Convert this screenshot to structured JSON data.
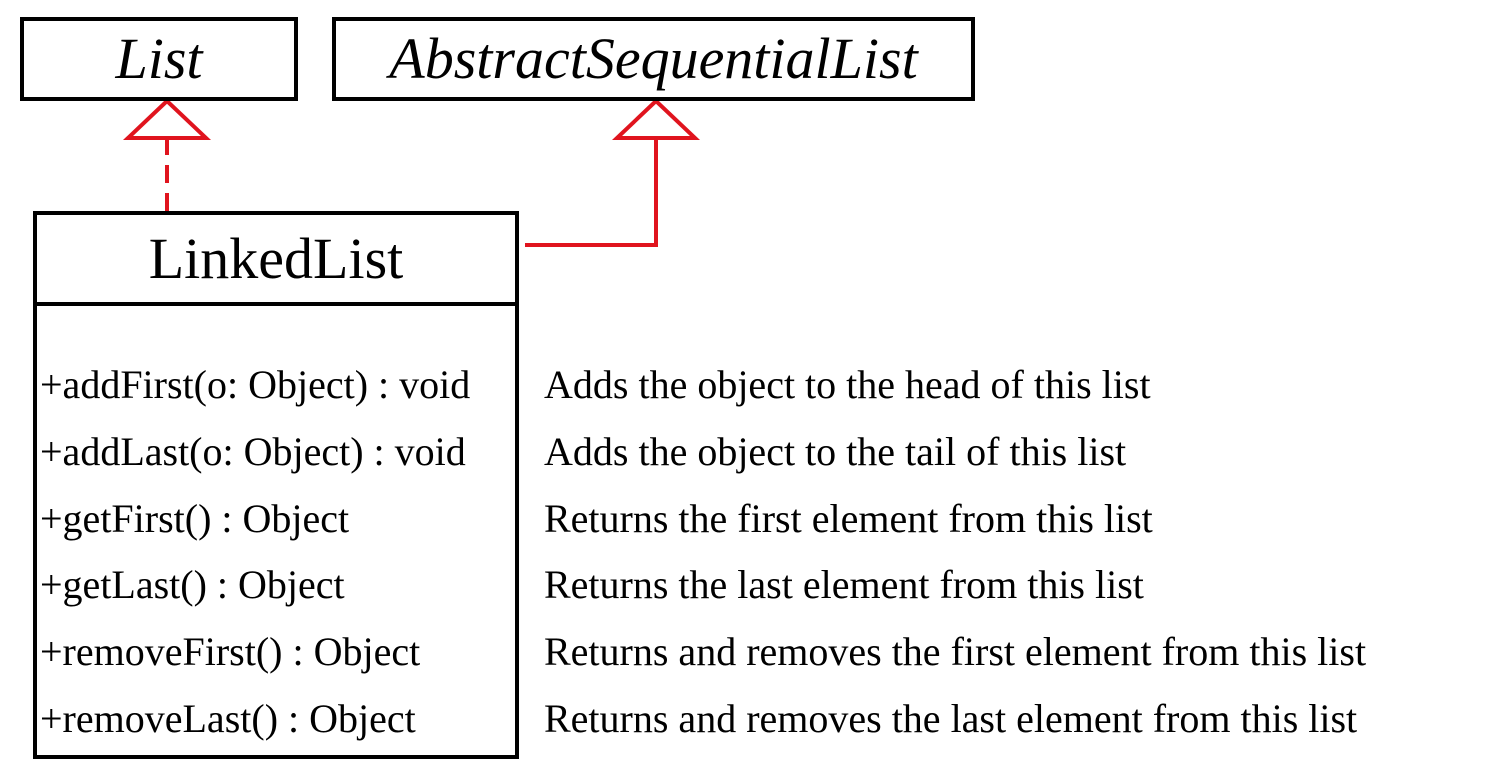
{
  "interfaces": {
    "list": "List",
    "abstract_sequential_list": "AbstractSequentialList"
  },
  "linked_list": {
    "name": "LinkedList",
    "methods": [
      {
        "signature": "+addFirst(o: Object) : void",
        "description": "Adds the object to the head of this list"
      },
      {
        "signature": "+addLast(o: Object) : void",
        "description": "Adds the object to the tail of this list"
      },
      {
        "signature": "+getFirst() : Object",
        "description": "Returns the first element from this list"
      },
      {
        "signature": "+getLast() : Object",
        "description": "Returns the last element from this list"
      },
      {
        "signature": "+removeFirst() : Object",
        "description": "Returns and removes the first element from this list"
      },
      {
        "signature": "+removeLast() : Object",
        "description": "Returns and removes the last element from this list"
      }
    ]
  },
  "colors": {
    "connector": "#e0141e",
    "border": "#000000"
  }
}
